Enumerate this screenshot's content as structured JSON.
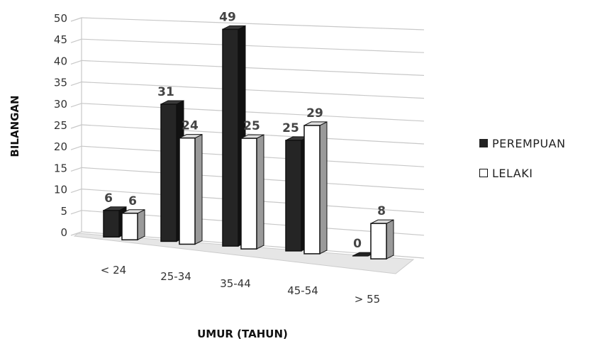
{
  "chart_data": {
    "type": "bar",
    "title": "",
    "xlabel": "UMUR (TAHUN)",
    "ylabel": "BILANGAN",
    "categories": [
      "< 24",
      "25-34",
      "35-44",
      "45-54",
      "> 55"
    ],
    "series": [
      {
        "name": "PEREMPUAN",
        "values": [
          6,
          31,
          49,
          25,
          0
        ],
        "color": "#222222"
      },
      {
        "name": "LELAKI",
        "values": [
          6,
          24,
          25,
          29,
          8
        ],
        "color": "#ffffff"
      }
    ],
    "yticks": [
      "0",
      "5",
      "10",
      "15",
      "20",
      "25",
      "30",
      "35",
      "40",
      "45",
      "50"
    ],
    "ylim": [
      0,
      50
    ],
    "grid": true,
    "style": "3d-clustered-column",
    "legend_position": "right"
  }
}
